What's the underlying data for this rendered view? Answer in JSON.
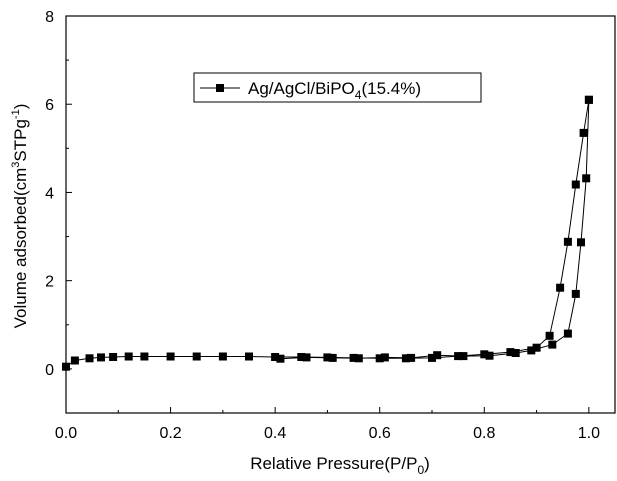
{
  "chart_data": {
    "type": "scatter",
    "title": "",
    "xlabel": {
      "text": "Relative Pressure(P/P",
      "sub": "0",
      "after": ")"
    },
    "ylabel": {
      "text": "Volume adsorbed(cm",
      "sup1": "3",
      "mid": "STPg",
      "sup2": "-1",
      "after": ")"
    },
    "xlim": [
      0.0,
      1.05
    ],
    "ylim": [
      -1,
      8
    ],
    "xticks": [
      "0.0",
      "0.2",
      "0.4",
      "0.6",
      "0.8",
      "1.0"
    ],
    "xtick_values": [
      0.0,
      0.2,
      0.4,
      0.6,
      0.8,
      1.0
    ],
    "yticks": [
      "0",
      "2",
      "4",
      "6",
      "8"
    ],
    "ytick_values": [
      0,
      2,
      4,
      6,
      8
    ],
    "grid": false,
    "legend_position": "top-center",
    "series": [
      {
        "name": "Ag/AgCl/BiPO",
        "name_sub": "4",
        "name_after": "(15.4%)",
        "marker": "square",
        "color": "#000000",
        "x": [
          0.0,
          0.017,
          0.045,
          0.067,
          0.09,
          0.12,
          0.15,
          0.2,
          0.25,
          0.3,
          0.35,
          0.4,
          0.45,
          0.5,
          0.55,
          0.6,
          0.65,
          0.7,
          0.75,
          0.8,
          0.85,
          0.9,
          0.925,
          0.945,
          0.96,
          0.975,
          0.99,
          1.0
        ],
        "y": [
          0.05,
          0.19,
          0.24,
          0.26,
          0.27,
          0.28,
          0.28,
          0.28,
          0.28,
          0.28,
          0.28,
          0.27,
          0.27,
          0.26,
          0.25,
          0.24,
          0.24,
          0.25,
          0.29,
          0.33,
          0.38,
          0.48,
          0.75,
          1.84,
          2.88,
          4.18,
          5.35,
          6.1
        ],
        "x_desorption": [
          1.0,
          0.995,
          0.985,
          0.975,
          0.96,
          0.93,
          0.89,
          0.86,
          0.81,
          0.76,
          0.71,
          0.66,
          0.61,
          0.56,
          0.51,
          0.46,
          0.41
        ],
        "y_desorption": [
          6.1,
          4.32,
          2.87,
          1.7,
          0.8,
          0.55,
          0.42,
          0.36,
          0.3,
          0.29,
          0.31,
          0.25,
          0.26,
          0.24,
          0.25,
          0.26,
          0.23
        ]
      }
    ]
  }
}
